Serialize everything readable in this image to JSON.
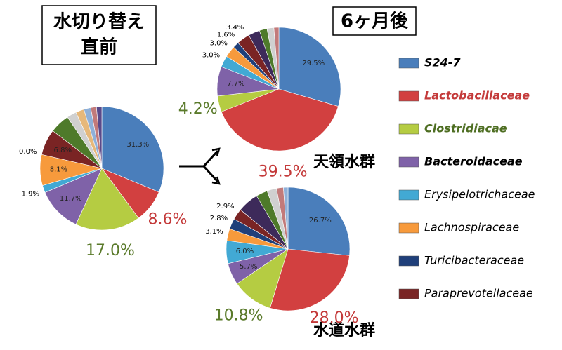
{
  "annotation": "6ヶ月後",
  "chart_data": [
    {
      "type": "pie",
      "title": [
        "水切り替え",
        "直前"
      ],
      "categories": [
        "S24-7",
        "Lactobacillaceae",
        "Clostridiacae",
        "Bacteroidaceae",
        "Erysipelotrichaceae",
        "Lachnospiraceae",
        "Turicibacteraceae",
        "Paraprevotellaceae",
        null,
        null,
        null,
        null,
        null,
        null
      ],
      "values": [
        31.3,
        8.6,
        17.0,
        11.7,
        1.9,
        8.1,
        0.0,
        6.8,
        5.2,
        2.5,
        2.2,
        1.8,
        1.5,
        1.4
      ],
      "value_labels": [
        "31.3%",
        "8.6%",
        "17.0%",
        "11.7%",
        "1.9%",
        "8.1%",
        "0.0%",
        "6.8%",
        null,
        null,
        null,
        null,
        null,
        null
      ],
      "colors": [
        "#4a7ebb",
        "#d24040",
        "#b5cc42",
        "#7f62a8",
        "#42a9d4",
        "#f79a3c",
        "#1f3f7a",
        "#7a2424",
        "#4e7a2a",
        "#d0d0d0",
        "#e6b87a",
        "#8fb0d8",
        "#c27a7a",
        "#5a4a8a"
      ]
    },
    {
      "type": "pie",
      "title": "天領水群",
      "categories": [
        "S24-7",
        "Lactobacillaceae",
        "Clostridiacae",
        "Bacteroidaceae",
        "Erysipelotrichaceae",
        "Lachnospiraceae",
        "Turicibacteraceae",
        "Paraprevotellaceae",
        null,
        null,
        null,
        null
      ],
      "values": [
        29.5,
        39.5,
        4.2,
        7.7,
        3.0,
        3.0,
        1.6,
        3.4,
        3.0,
        2.0,
        1.8,
        1.3
      ],
      "value_labels": [
        "29.5%",
        "39.5%",
        "4.2%",
        "7.7%",
        "3.0%",
        "3.0%",
        "1.6%",
        "3.4%",
        null,
        null,
        null,
        null
      ],
      "colors": [
        "#4a7ebb",
        "#d24040",
        "#b5cc42",
        "#7f62a8",
        "#42a9d4",
        "#f79a3c",
        "#1f3f7a",
        "#7a2424",
        "#3d2a5a",
        "#4e7a2a",
        "#d0d0d0",
        "#c27a7a"
      ]
    },
    {
      "type": "pie",
      "title": "水道水群",
      "categories": [
        "S24-7",
        "Lactobacillaceae",
        "Clostridiacae",
        "Bacteroidaceae",
        "Erysipelotrichaceae",
        "Lachnospiraceae",
        "Turicibacteraceae",
        "Paraprevotellaceae",
        null,
        null,
        null,
        null,
        null
      ],
      "values": [
        26.7,
        28.0,
        10.8,
        5.7,
        6.0,
        3.1,
        2.8,
        2.9,
        5.5,
        3.0,
        2.5,
        1.8,
        1.2
      ],
      "value_labels": [
        "26.7%",
        "28.0%",
        "10.8%",
        "5.7%",
        "6.0%",
        "3.1%",
        "2.8%",
        "2.9%",
        null,
        null,
        null,
        null,
        null
      ],
      "colors": [
        "#4a7ebb",
        "#d24040",
        "#b5cc42",
        "#7f62a8",
        "#42a9d4",
        "#f79a3c",
        "#1f3f7a",
        "#7a2424",
        "#3d2a5a",
        "#4e7a2a",
        "#d0d0d0",
        "#c27a7a",
        "#8fb0d8"
      ]
    }
  ]
}
